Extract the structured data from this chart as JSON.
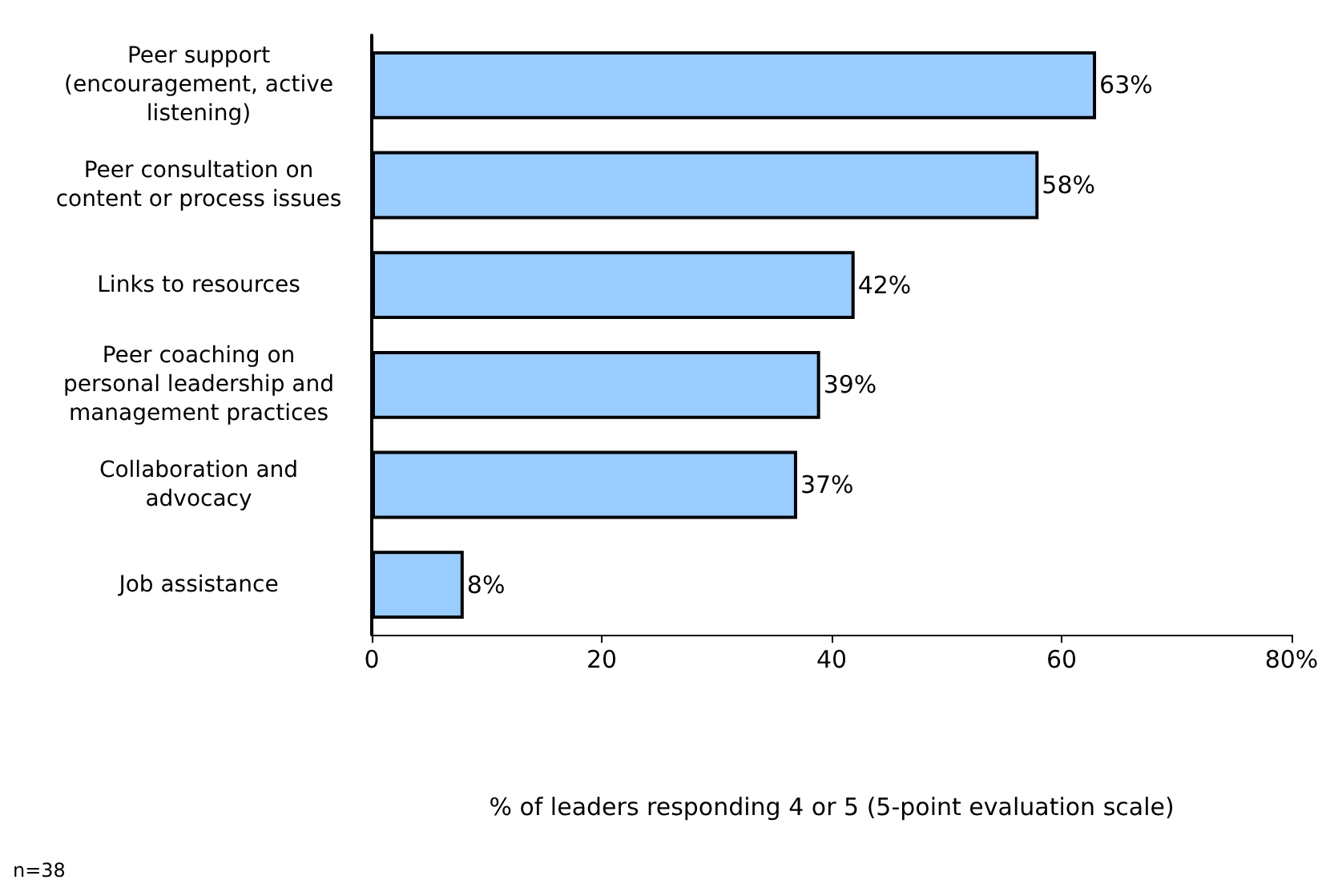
{
  "chart_data": {
    "type": "bar",
    "orientation": "horizontal",
    "categories": [
      "Peer support\n(encouragement, active\nlistening)",
      "Peer consultation on\ncontent or process issues",
      "Links to resources",
      "Peer coaching on\npersonal leadership and\nmanagement practices",
      "Collaboration and\nadvocacy",
      "Job assistance"
    ],
    "values": [
      63,
      58,
      42,
      39,
      37,
      8
    ],
    "value_labels": [
      "63%",
      "58%",
      "42%",
      "39%",
      "37%",
      "8%"
    ],
    "color": "#99ccff",
    "xlim": [
      0,
      80
    ],
    "xticks": [
      0,
      20,
      40,
      60,
      {
        "value": 80,
        "label": "80%"
      }
    ],
    "xlabel": "% of leaders responding 4 or 5 (5-point evaluation scale)",
    "annotations": [
      "n=38"
    ],
    "grid": false
  }
}
